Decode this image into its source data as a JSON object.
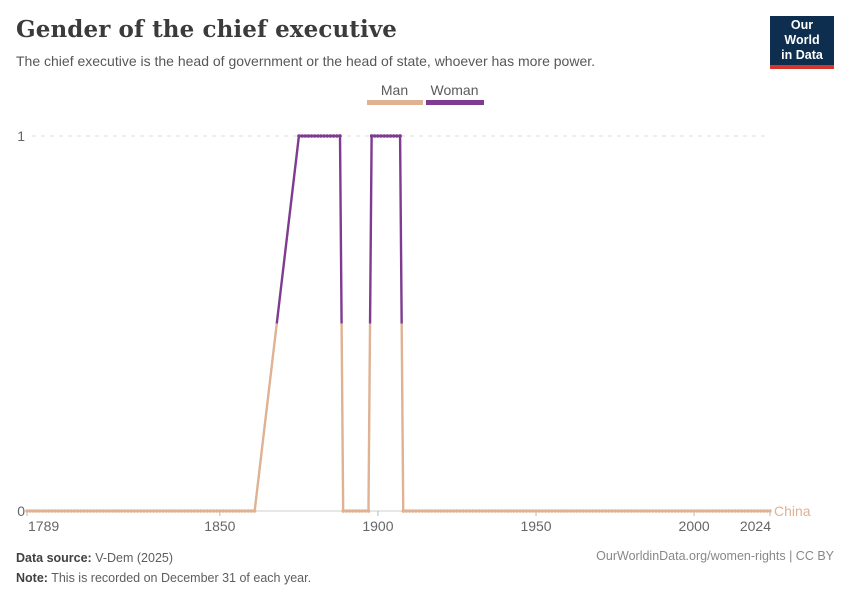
{
  "header": {
    "title": "Gender of the chief executive",
    "subtitle": "The chief executive is the head of government or the head of state, whoever has more power."
  },
  "logo": {
    "line1": "Our World",
    "line2": "in Data",
    "bg_color": "#0d2e4e",
    "accent_color": "#d7352b"
  },
  "legend": {
    "items": [
      {
        "label": "Man",
        "color": "#deb293"
      },
      {
        "label": "Woman",
        "color": "#7e3b90"
      }
    ]
  },
  "chart_data": {
    "type": "line",
    "entity": "China",
    "xlim": [
      1789,
      2024
    ],
    "ylim": [
      0,
      1
    ],
    "x_ticks": [
      1789,
      1850,
      1900,
      1950,
      2000,
      2024
    ],
    "y_ticks": [
      0,
      1
    ],
    "grid": "dashed horizontal gridline at y=1, solid baseline at y=0",
    "legend_position": "top-center",
    "value_labels": {
      "0": "Man",
      "1": "Woman"
    },
    "colors": {
      "Man": "#deb293",
      "Woman": "#7e3b90"
    },
    "series": [
      {
        "name": "China",
        "points": [
          [
            1789,
            0
          ],
          [
            1861,
            0
          ],
          [
            1875,
            1
          ],
          [
            1888,
            1
          ],
          [
            1889,
            0
          ],
          [
            1897,
            0
          ],
          [
            1898,
            1
          ],
          [
            1907,
            1
          ],
          [
            1908,
            0
          ],
          [
            2024,
            0
          ]
        ],
        "gap_segments": [
          [
            1861,
            1875
          ]
        ],
        "note": "value 0 = Man is chief executive, value 1 = Woman; yearly data points drawn as dot markers; 1862-1874 interpolated (no markers)"
      }
    ],
    "axis_color": "#cfcfcf",
    "gridline_color": "#dcdcdc",
    "tick_label_color": "#666666"
  },
  "footer": {
    "source_label": "Data source:",
    "source_value": " V-Dem (2025)",
    "note_label": "Note:",
    "note_value": " This is recorded on December 31 of each year.",
    "link": "OurWorldinData.org/women-rights | CC BY"
  }
}
